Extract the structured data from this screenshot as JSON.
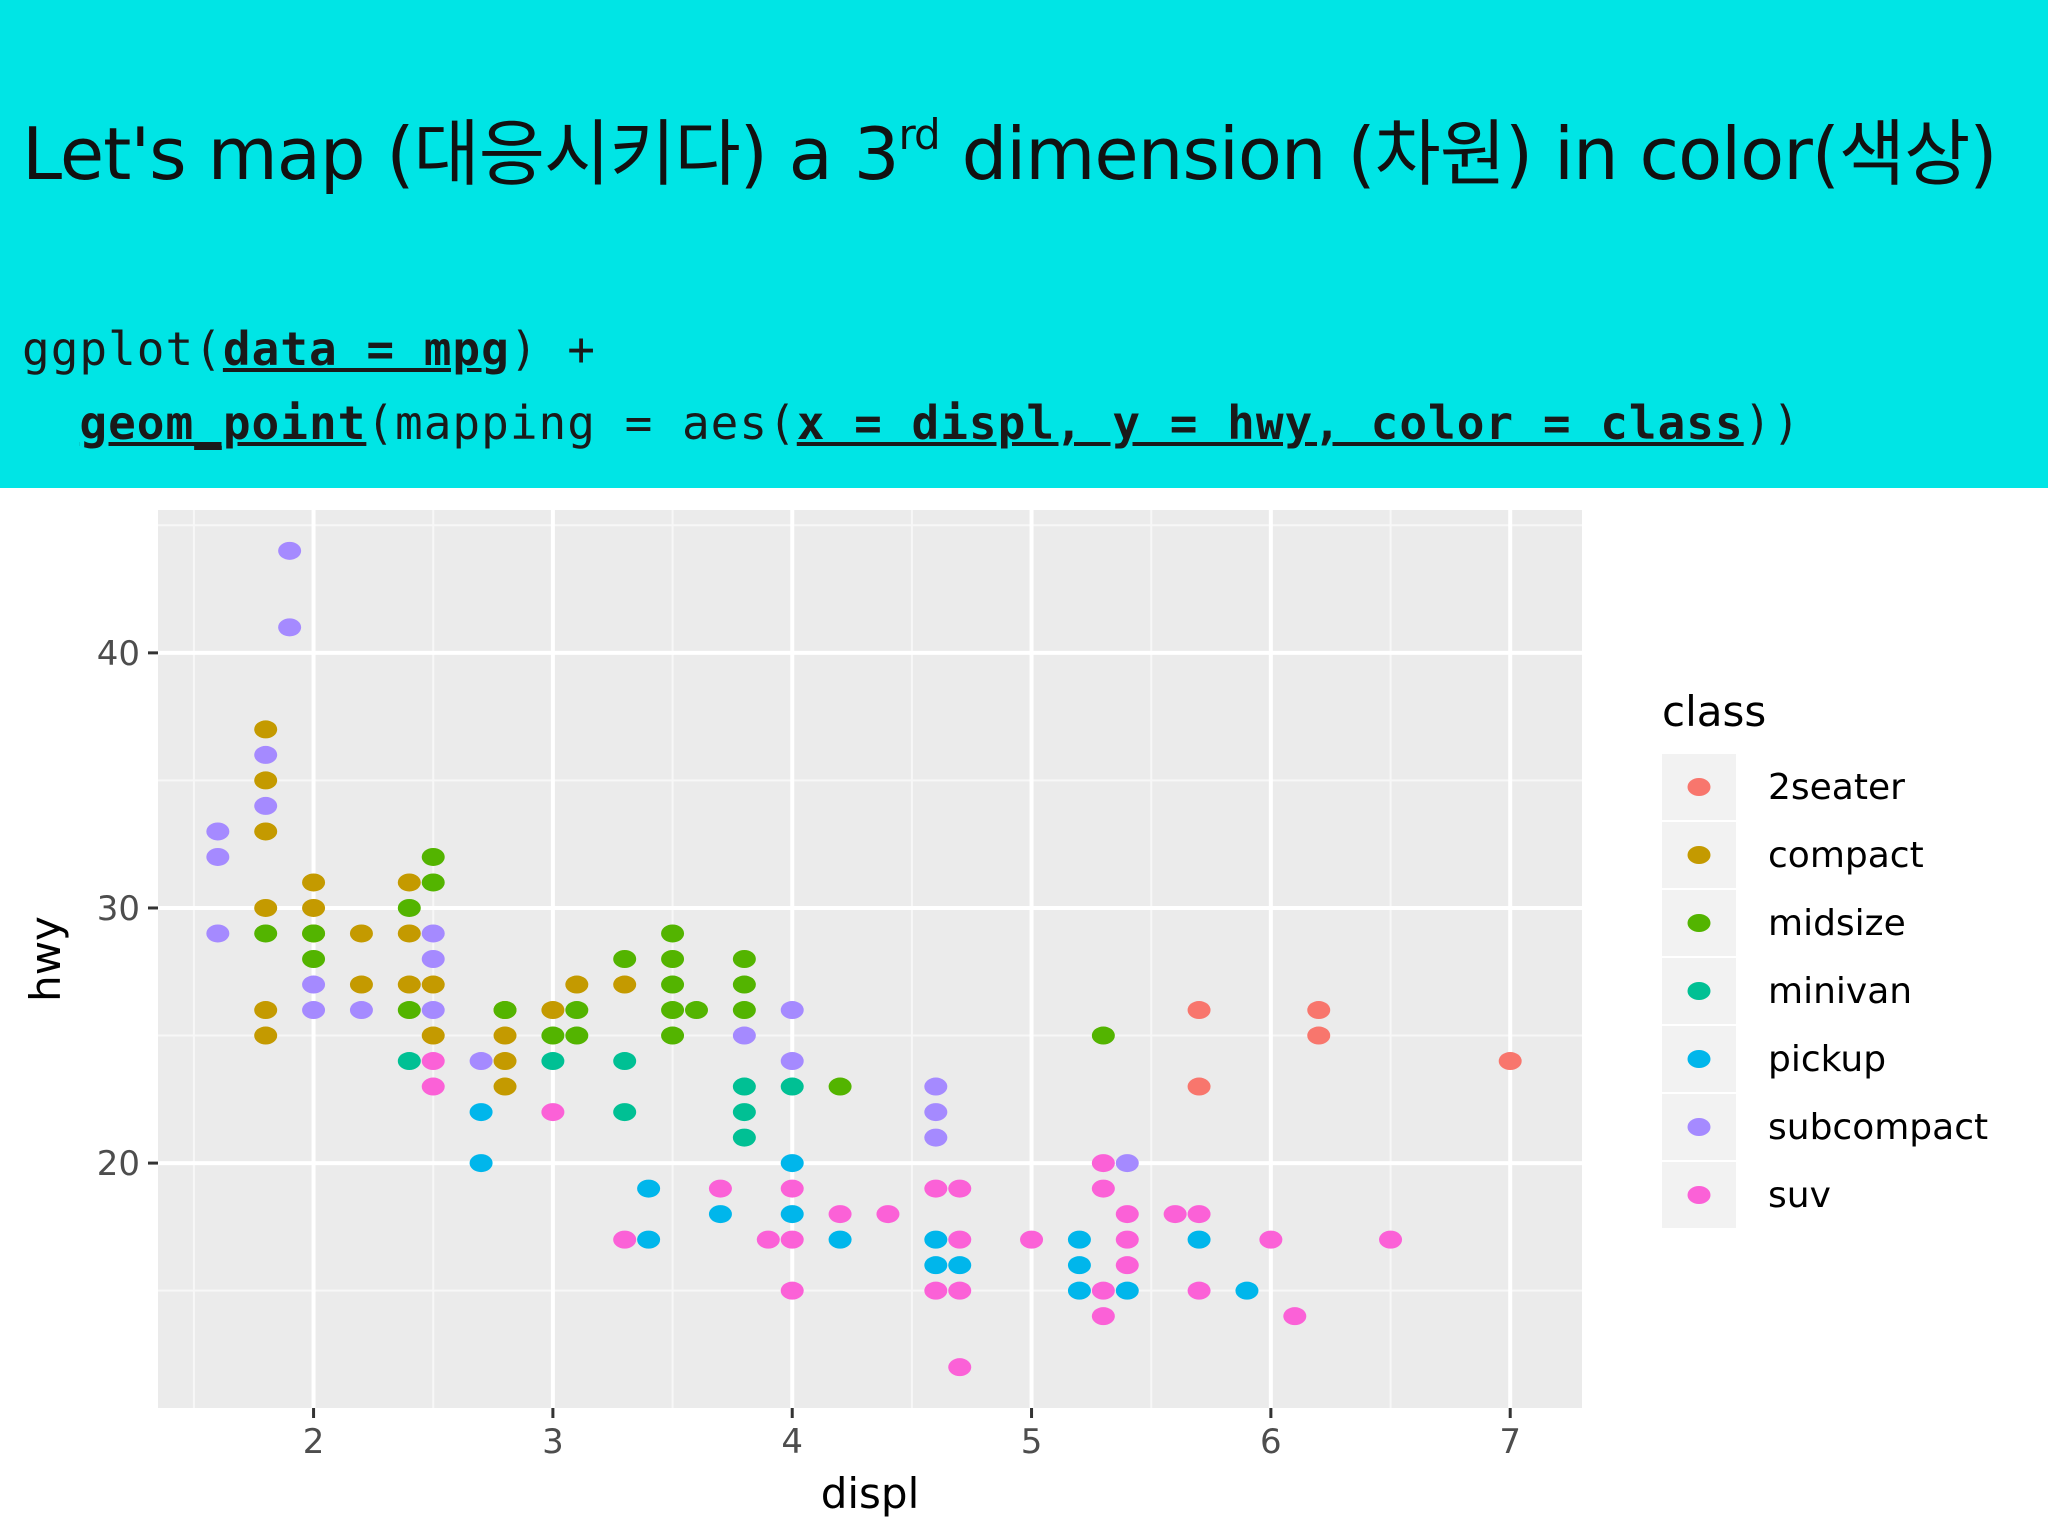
{
  "slide": {
    "title_prefix": "Let's map (대응시키다) a 3",
    "title_sup": "rd",
    "title_suffix": " dimension (차원) in color(색상)",
    "code_line1": {
      "fn": "ggplot(",
      "arg": "data = mpg",
      "tail": ") +"
    },
    "code_line2": {
      "fn": "geom_point",
      "mid": "(mapping = aes(",
      "arg": "x = displ, y = hwy, color = class",
      "tail": "))"
    }
  },
  "chart_data": {
    "type": "scatter",
    "xlabel": "displ",
    "ylabel": "hwy",
    "xlim": [
      1.35,
      7.3
    ],
    "ylim": [
      10.4,
      45.6
    ],
    "x_ticks": [
      2,
      3,
      4,
      5,
      6,
      7
    ],
    "y_ticks": [
      20,
      30,
      40
    ],
    "grid": true,
    "legend": {
      "title": "class",
      "placement": "right",
      "entries": [
        "2seater",
        "compact",
        "midsize",
        "minivan",
        "pickup",
        "subcompact",
        "suv"
      ]
    },
    "colors": {
      "2seater": "#F8766D",
      "compact": "#C49A00",
      "midsize": "#53B400",
      "minivan": "#00C094",
      "pickup": "#00B6EB",
      "subcompact": "#A58AFF",
      "suv": "#FB61D7"
    },
    "series": [
      {
        "name": "2seater",
        "points": [
          [
            5.7,
            26
          ],
          [
            5.7,
            23
          ],
          [
            6.2,
            26
          ],
          [
            6.2,
            25
          ],
          [
            7.0,
            24
          ]
        ]
      },
      {
        "name": "compact",
        "points": [
          [
            1.8,
            37
          ],
          [
            1.8,
            35
          ],
          [
            1.8,
            33
          ],
          [
            1.8,
            30
          ],
          [
            1.8,
            26
          ],
          [
            1.8,
            25
          ],
          [
            2.0,
            31
          ],
          [
            2.0,
            30
          ],
          [
            2.0,
            29
          ],
          [
            2.2,
            29
          ],
          [
            2.2,
            27
          ],
          [
            2.4,
            31
          ],
          [
            2.4,
            29
          ],
          [
            2.4,
            27
          ],
          [
            2.5,
            27
          ],
          [
            2.5,
            25
          ],
          [
            2.8,
            26
          ],
          [
            2.8,
            25
          ],
          [
            2.8,
            24
          ],
          [
            2.8,
            23
          ],
          [
            3.0,
            26
          ],
          [
            3.1,
            27
          ],
          [
            3.3,
            27
          ]
        ]
      },
      {
        "name": "midsize",
        "points": [
          [
            1.8,
            29
          ],
          [
            2.0,
            29
          ],
          [
            2.0,
            28
          ],
          [
            2.4,
            30
          ],
          [
            2.4,
            26
          ],
          [
            2.5,
            32
          ],
          [
            2.5,
            31
          ],
          [
            2.8,
            26
          ],
          [
            3.0,
            25
          ],
          [
            3.1,
            26
          ],
          [
            3.1,
            25
          ],
          [
            3.3,
            28
          ],
          [
            3.5,
            29
          ],
          [
            3.5,
            28
          ],
          [
            3.5,
            27
          ],
          [
            3.5,
            26
          ],
          [
            3.5,
            25
          ],
          [
            3.6,
            26
          ],
          [
            3.8,
            28
          ],
          [
            3.8,
            27
          ],
          [
            3.8,
            26
          ],
          [
            4.2,
            23
          ],
          [
            5.3,
            25
          ]
        ]
      },
      {
        "name": "minivan",
        "points": [
          [
            2.4,
            24
          ],
          [
            3.0,
            24
          ],
          [
            3.3,
            24
          ],
          [
            3.3,
            22
          ],
          [
            3.8,
            23
          ],
          [
            3.8,
            22
          ],
          [
            3.8,
            21
          ],
          [
            4.0,
            23
          ]
        ]
      },
      {
        "name": "pickup",
        "points": [
          [
            2.7,
            22
          ],
          [
            2.7,
            20
          ],
          [
            3.4,
            19
          ],
          [
            3.4,
            17
          ],
          [
            3.7,
            18
          ],
          [
            4.0,
            20
          ],
          [
            4.0,
            18
          ],
          [
            4.2,
            17
          ],
          [
            4.6,
            17
          ],
          [
            4.6,
            16
          ],
          [
            4.7,
            16
          ],
          [
            5.2,
            17
          ],
          [
            5.2,
            16
          ],
          [
            5.2,
            15
          ],
          [
            5.4,
            15
          ],
          [
            5.7,
            17
          ],
          [
            5.9,
            15
          ]
        ]
      },
      {
        "name": "subcompact",
        "points": [
          [
            1.6,
            33
          ],
          [
            1.6,
            32
          ],
          [
            1.6,
            29
          ],
          [
            1.8,
            36
          ],
          [
            1.8,
            34
          ],
          [
            1.9,
            44
          ],
          [
            1.9,
            41
          ],
          [
            2.0,
            27
          ],
          [
            2.0,
            26
          ],
          [
            2.2,
            26
          ],
          [
            2.5,
            29
          ],
          [
            2.5,
            28
          ],
          [
            2.5,
            26
          ],
          [
            2.7,
            24
          ],
          [
            3.8,
            25
          ],
          [
            4.0,
            26
          ],
          [
            4.0,
            24
          ],
          [
            4.6,
            23
          ],
          [
            4.6,
            22
          ],
          [
            4.6,
            21
          ],
          [
            5.4,
            20
          ]
        ]
      },
      {
        "name": "suv",
        "points": [
          [
            2.5,
            24
          ],
          [
            2.5,
            23
          ],
          [
            3.0,
            22
          ],
          [
            3.3,
            17
          ],
          [
            3.7,
            19
          ],
          [
            3.9,
            17
          ],
          [
            4.0,
            19
          ],
          [
            4.0,
            17
          ],
          [
            4.0,
            15
          ],
          [
            4.2,
            18
          ],
          [
            4.4,
            18
          ],
          [
            4.6,
            19
          ],
          [
            4.6,
            15
          ],
          [
            4.7,
            19
          ],
          [
            4.7,
            17
          ],
          [
            4.7,
            15
          ],
          [
            4.7,
            12
          ],
          [
            5.0,
            17
          ],
          [
            5.3,
            20
          ],
          [
            5.3,
            19
          ],
          [
            5.3,
            15
          ],
          [
            5.3,
            14
          ],
          [
            5.4,
            18
          ],
          [
            5.4,
            17
          ],
          [
            5.4,
            16
          ],
          [
            5.6,
            18
          ],
          [
            5.7,
            18
          ],
          [
            5.7,
            15
          ],
          [
            6.0,
            17
          ],
          [
            6.1,
            14
          ],
          [
            6.5,
            17
          ]
        ]
      }
    ]
  }
}
